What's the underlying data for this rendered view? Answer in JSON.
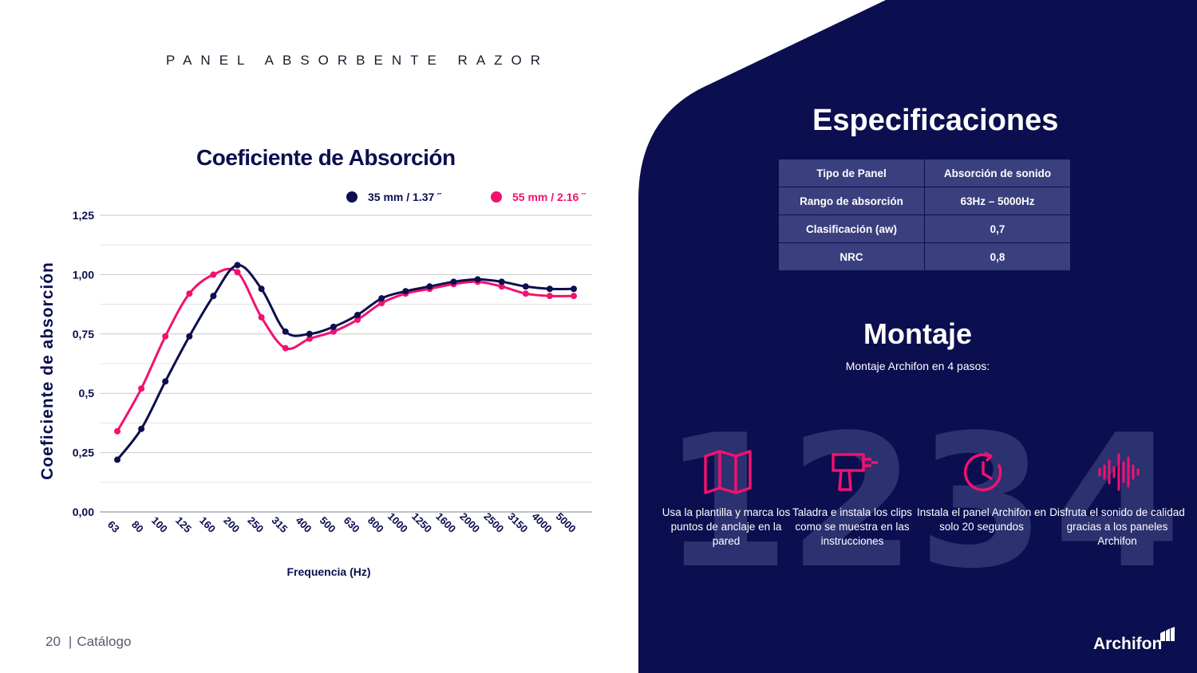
{
  "header": {
    "title": "PANEL ABSORBENTE RAZOR"
  },
  "footer": {
    "page": "20",
    "label": "Catálogo"
  },
  "chart_data": {
    "type": "line",
    "title": "Coeficiente de Absorción",
    "xlabel": "Frequencia (Hz)",
    "ylabel": "Coeficiente de absorción",
    "categories": [
      "63",
      "80",
      "100",
      "125",
      "160",
      "200",
      "250",
      "315",
      "400",
      "500",
      "630",
      "800",
      "1000",
      "1250",
      "1600",
      "2000",
      "2500",
      "3150",
      "4000",
      "5000"
    ],
    "ylim": [
      0,
      1.25
    ],
    "yticks": [
      0,
      0.25,
      0.5,
      0.75,
      1.0,
      1.25
    ],
    "ytick_labels": [
      "0,00",
      "0,25",
      "0,5",
      "0,75",
      "1,00",
      "1,25"
    ],
    "grid": true,
    "legend": "top",
    "series": [
      {
        "name": "35 mm / 1.37 ˝",
        "color": "#0b0e4f",
        "values": [
          0.22,
          0.35,
          0.55,
          0.74,
          0.91,
          1.04,
          0.94,
          0.76,
          0.75,
          0.78,
          0.83,
          0.9,
          0.93,
          0.95,
          0.97,
          0.98,
          0.97,
          0.95,
          0.94,
          0.94
        ]
      },
      {
        "name": "55 mm / 2.16 ˝",
        "color": "#f0126e",
        "values": [
          0.34,
          0.52,
          0.74,
          0.92,
          1.0,
          1.01,
          0.82,
          0.69,
          0.73,
          0.76,
          0.81,
          0.88,
          0.92,
          0.94,
          0.96,
          0.97,
          0.95,
          0.92,
          0.91,
          0.91
        ]
      }
    ]
  },
  "specs": {
    "title": "Especificaciones",
    "rows": [
      [
        "Tipo de Panel",
        "Absorción de sonido"
      ],
      [
        "Rango de absorción",
        "63Hz – 5000Hz"
      ],
      [
        "Clasificación  (aw)",
        "0,7"
      ],
      [
        "NRC",
        "0,8"
      ]
    ]
  },
  "montaje": {
    "title": "Montaje",
    "subtitle": "Montaje Archifon en 4 pasos:",
    "steps": [
      {
        "num": "1",
        "icon": "map-icon",
        "text": "Usa la plantilla y marca los puntos de anclaje en la pared"
      },
      {
        "num": "2",
        "icon": "drill-icon",
        "text": "Taladra e instala los clips como se muestra en las instrucciones"
      },
      {
        "num": "3",
        "icon": "clock-icon",
        "text": "Instala el panel Archifon en solo 20 segundos"
      },
      {
        "num": "4",
        "icon": "soundwave-icon",
        "text": "Disfruta el sonido de calidad gracias a los paneles Archifon"
      }
    ]
  },
  "brand": {
    "name": "Archifon",
    "accent": "#f0126e",
    "navy": "#0b0e4f"
  }
}
